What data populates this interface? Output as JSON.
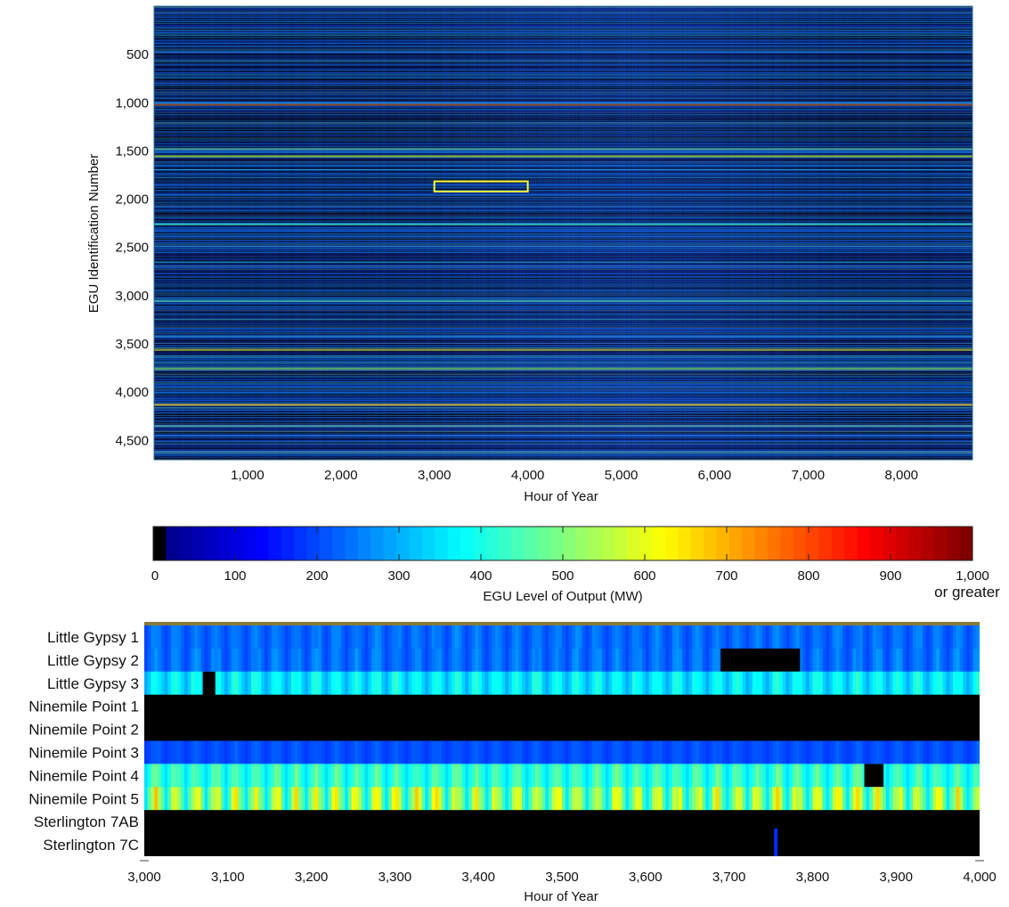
{
  "chart_data": [
    {
      "type": "heatmap",
      "xlabel": "Hour of Year",
      "ylabel": "EGU Identification Number",
      "xlim": [
        0,
        8760
      ],
      "ylim": [
        0,
        4700
      ],
      "xticks": [
        1000,
        2000,
        3000,
        4000,
        5000,
        6000,
        7000,
        8000
      ],
      "xtick_labels": [
        "1,000",
        "2,000",
        "3,000",
        "4,000",
        "5,000",
        "6,000",
        "7,000",
        "8,000"
      ],
      "yticks": [
        500,
        1000,
        1500,
        2000,
        2500,
        3000,
        3500,
        4000,
        4500
      ],
      "ytick_labels": [
        "500",
        "1,000",
        "1,500",
        "2,000",
        "2,500",
        "3,000",
        "3,500",
        "4,000",
        "4,500"
      ],
      "y_direction": "top-to-bottom",
      "highlight_box": {
        "x": [
          3000,
          4000
        ],
        "y": [
          1815,
          1920
        ],
        "color": "#ffff33"
      },
      "bright_rows": [
        {
          "y": 1020,
          "color": "#8a4a2c"
        },
        {
          "y": 1480,
          "color": "#4aa39a"
        },
        {
          "y": 1555,
          "color": "#7fb43a"
        },
        {
          "y": 2260,
          "color": "#2bb0b0"
        },
        {
          "y": 3055,
          "color": "#3aa0a0"
        },
        {
          "y": 3560,
          "color": "#8f9a3a"
        },
        {
          "y": 3755,
          "color": "#5aa060"
        },
        {
          "y": 4130,
          "color": "#b8b04a"
        },
        {
          "y": 4350,
          "color": "#4a8fa0"
        },
        {
          "y": 4620,
          "color": "#3a7f9a"
        }
      ],
      "value_scale": "EGU Level of Output (MW)"
    },
    {
      "type": "colorbar",
      "label": "EGU Level of Output (MW)",
      "range": [
        0,
        1000
      ],
      "ticks": [
        0,
        100,
        200,
        300,
        400,
        500,
        600,
        700,
        800,
        900,
        1000
      ],
      "tick_labels": [
        "0",
        "100",
        "200",
        "300",
        "400",
        "500",
        "600",
        "700",
        "800",
        "900",
        "1,000"
      ],
      "max_note": "or greater",
      "zero_color": "#000000",
      "colormap": "jet"
    },
    {
      "type": "heatmap",
      "xlabel": "Hour of Year",
      "xlim": [
        3000,
        4000
      ],
      "xticks": [
        3000,
        3100,
        3200,
        3300,
        3400,
        3500,
        3600,
        3700,
        3800,
        3900,
        4000
      ],
      "xtick_labels": [
        "3,000",
        "3,100",
        "3,200",
        "3,300",
        "3,400",
        "3,500",
        "3,600",
        "3,700",
        "3,800",
        "3,900",
        "4,000"
      ],
      "rows": [
        {
          "name": "Little Gypsy 1",
          "base_mw": 110,
          "peak_mw": 190,
          "offline": []
        },
        {
          "name": "Little Gypsy 2",
          "base_mw": 110,
          "peak_mw": 200,
          "offline": [
            [
              3690,
              3785
            ]
          ]
        },
        {
          "name": "Little Gypsy 3",
          "base_mw": 230,
          "peak_mw": 370,
          "offline": [
            [
              3070,
              3085
            ]
          ]
        },
        {
          "name": "Ninemile Point 1",
          "base_mw": 0,
          "peak_mw": 0,
          "offline": [
            [
              3000,
              4000
            ]
          ]
        },
        {
          "name": "Ninemile Point 2",
          "base_mw": 0,
          "peak_mw": 0,
          "offline": [
            [
              3000,
              4000
            ]
          ]
        },
        {
          "name": "Ninemile Point 3",
          "base_mw": 95,
          "peak_mw": 140,
          "offline": []
        },
        {
          "name": "Ninemile Point 4",
          "base_mw": 290,
          "peak_mw": 450,
          "offline": [
            [
              3862,
              3885
            ]
          ]
        },
        {
          "name": "Ninemile Point 5",
          "base_mw": 300,
          "peak_mw": 640,
          "offline": []
        },
        {
          "name": "Sterlington 7AB",
          "base_mw": 0,
          "peak_mw": 0,
          "offline": [
            [
              3000,
              4000
            ]
          ]
        },
        {
          "name": "Sterlington 7C",
          "base_mw": 0,
          "peak_mw": 0,
          "offline": [
            [
              3000,
              4000
            ]
          ],
          "spikes": [
            {
              "x": 3756,
              "mw": 80
            }
          ]
        }
      ]
    }
  ]
}
